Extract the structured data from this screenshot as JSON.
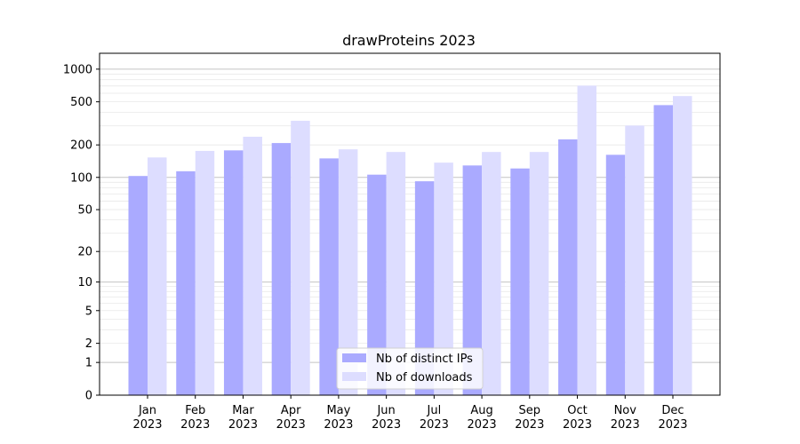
{
  "chart_data": {
    "type": "bar",
    "title": "drawProteins 2023",
    "xlabel": "",
    "ylabel": "",
    "yscale": "log1p",
    "ylim": [
      0,
      1400
    ],
    "yticks": [
      0,
      1,
      2,
      5,
      10,
      20,
      50,
      100,
      200,
      500,
      1000
    ],
    "categories": [
      [
        "Jan",
        "2023"
      ],
      [
        "Feb",
        "2023"
      ],
      [
        "Mar",
        "2023"
      ],
      [
        "Apr",
        "2023"
      ],
      [
        "May",
        "2023"
      ],
      [
        "Jun",
        "2023"
      ],
      [
        "Jul",
        "2023"
      ],
      [
        "Aug",
        "2023"
      ],
      [
        "Sep",
        "2023"
      ],
      [
        "Oct",
        "2023"
      ],
      [
        "Nov",
        "2023"
      ],
      [
        "Dec",
        "2023"
      ]
    ],
    "series": [
      {
        "name": "Nb of distinct IPs",
        "color": "#aaaaff",
        "values": [
          103,
          114,
          178,
          208,
          150,
          106,
          92,
          129,
          121,
          225,
          162,
          466
        ]
      },
      {
        "name": "Nb of downloads",
        "color": "#ddddff",
        "values": [
          153,
          176,
          238,
          334,
          182,
          172,
          137,
          172,
          172,
          705,
          302,
          565
        ]
      }
    ],
    "grid": true,
    "legend_position": "bottom-center"
  }
}
